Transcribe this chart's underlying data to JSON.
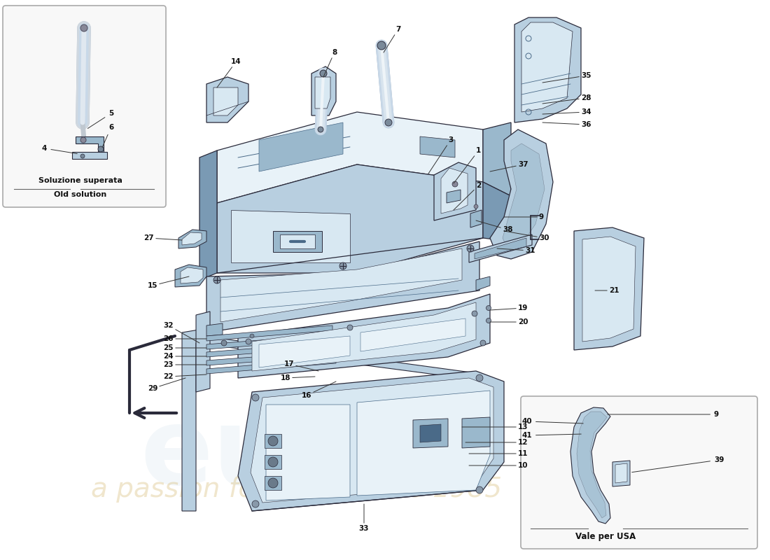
{
  "bg": "#ffffff",
  "pc1": "#b8cfe0",
  "pc2": "#9ab8cc",
  "pc3": "#7a9ab4",
  "pc_dark": "#4a6a88",
  "pc_inner": "#d8e8f2",
  "pc_light": "#e8f2f8",
  "oc": "#2a2a3a",
  "tc": "#111111",
  "ac": "#333333",
  "inset_bg": "#f8f8f8",
  "inset_border": "#aaaaaa",
  "wm1_color": "#c0d4e4",
  "wm2_color": "#d4b870",
  "fs": 7.5,
  "lw": 0.9,
  "inset1_label1": "Soluzione superata",
  "inset1_label2": "Old solution",
  "inset2_label": "Vale per USA"
}
